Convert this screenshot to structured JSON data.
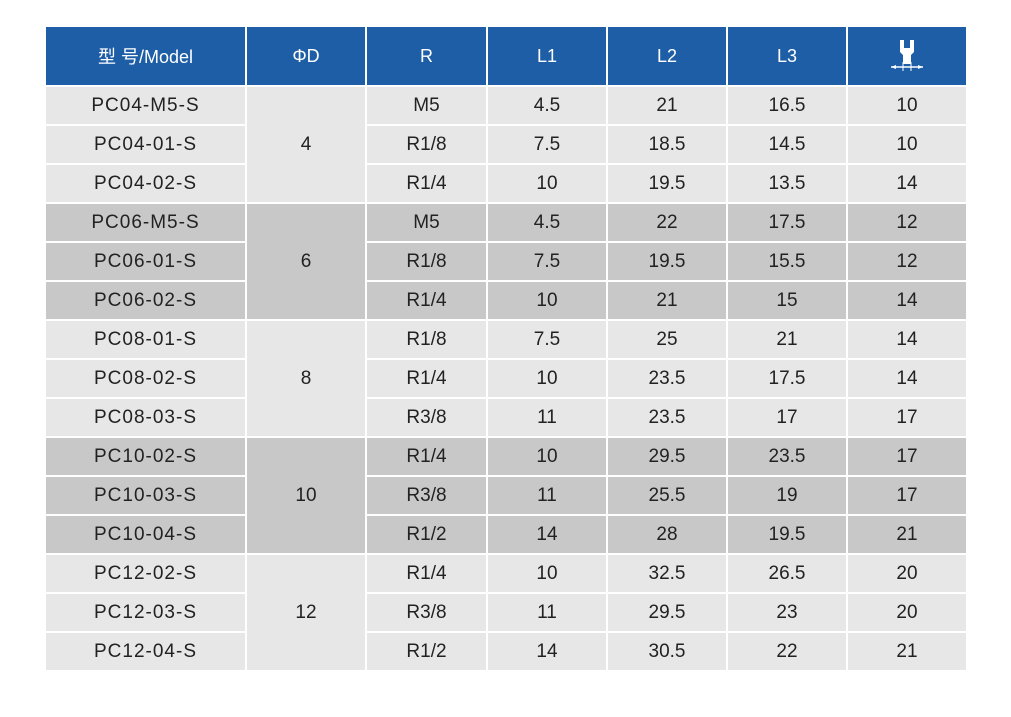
{
  "table": {
    "header": [
      "型 号/Model",
      "ΦD",
      "R",
      "L1",
      "L2",
      "L3"
    ],
    "groups": [
      {
        "d": "4",
        "rows": [
          [
            "PC04-M5-S",
            "M5",
            "4.5",
            "21",
            "16.5",
            "10"
          ],
          [
            "PC04-01-S",
            "R1/8",
            "7.5",
            "18.5",
            "14.5",
            "10"
          ],
          [
            "PC04-02-S",
            "R1/4",
            "10",
            "19.5",
            "13.5",
            "14"
          ]
        ]
      },
      {
        "d": "6",
        "rows": [
          [
            "PC06-M5-S",
            "M5",
            "4.5",
            "22",
            "17.5",
            "12"
          ],
          [
            "PC06-01-S",
            "R1/8",
            "7.5",
            "19.5",
            "15.5",
            "12"
          ],
          [
            "PC06-02-S",
            "R1/4",
            "10",
            "21",
            "15",
            "14"
          ]
        ]
      },
      {
        "d": "8",
        "rows": [
          [
            "PC08-01-S",
            "R1/8",
            "7.5",
            "25",
            "21",
            "14"
          ],
          [
            "PC08-02-S",
            "R1/4",
            "10",
            "23.5",
            "17.5",
            "14"
          ],
          [
            "PC08-03-S",
            "R3/8",
            "11",
            "23.5",
            "17",
            "17"
          ]
        ]
      },
      {
        "d": "10",
        "rows": [
          [
            "PC10-02-S",
            "R1/4",
            "10",
            "29.5",
            "23.5",
            "17"
          ],
          [
            "PC10-03-S",
            "R3/8",
            "11",
            "25.5",
            "19",
            "17"
          ],
          [
            "PC10-04-S",
            "R1/2",
            "14",
            "28",
            "19.5",
            "21"
          ]
        ]
      },
      {
        "d": "12",
        "rows": [
          [
            "PC12-02-S",
            "R1/4",
            "10",
            "32.5",
            "26.5",
            "20"
          ],
          [
            "PC12-03-S",
            "R3/8",
            "11",
            "29.5",
            "23",
            "20"
          ],
          [
            "PC12-04-S",
            "R1/2",
            "14",
            "30.5",
            "22",
            "21"
          ]
        ]
      }
    ]
  }
}
